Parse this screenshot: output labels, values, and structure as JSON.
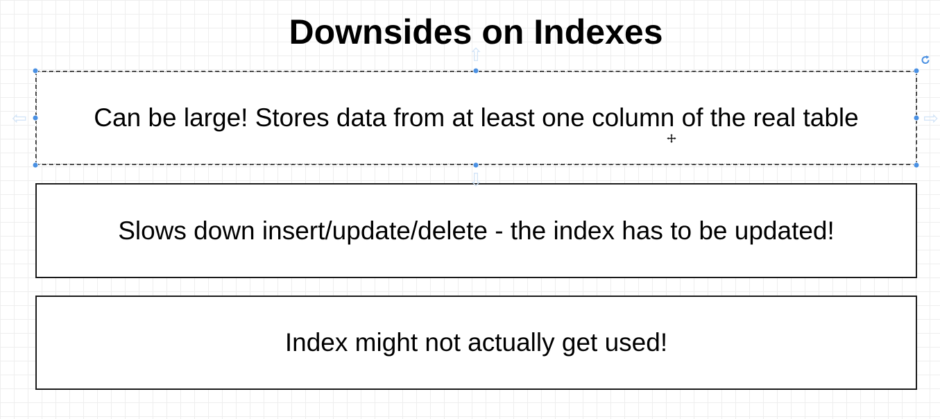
{
  "title": "Downsides on Indexes",
  "boxes": [
    {
      "text": "Can be large! Stores data from at least one column of the real table",
      "selected": true
    },
    {
      "text": "Slows down insert/update/delete - the index has to be updated!",
      "selected": false
    },
    {
      "text": "Index might not actually get used!",
      "selected": false
    }
  ],
  "colors": {
    "handle": "#4a90e2",
    "border": "#1a1a1a",
    "arrow": "#d2e4f7"
  },
  "icons": {
    "rotate": "rotate-icon",
    "move": "move-cursor-icon",
    "arrows": "connection-arrow-icon"
  }
}
